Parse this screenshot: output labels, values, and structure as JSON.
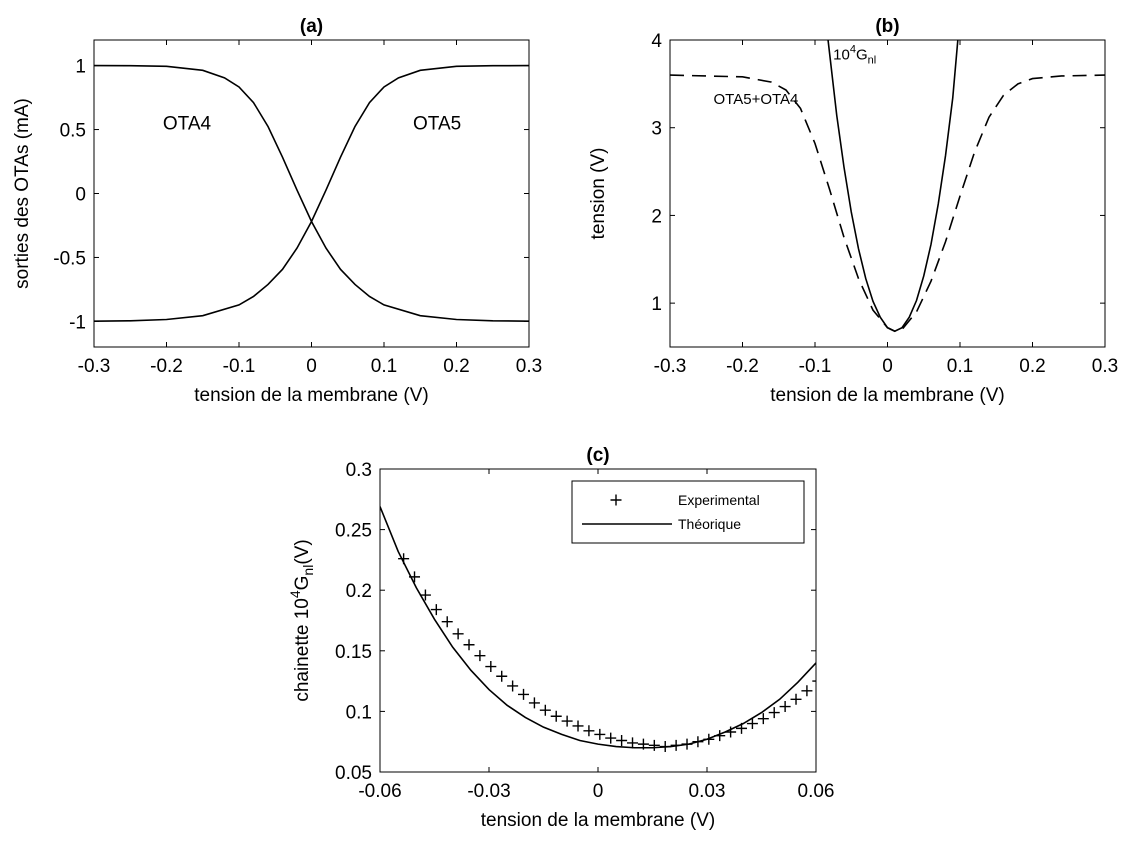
{
  "chart_data": [
    {
      "id": "a",
      "type": "line",
      "title": "(a)",
      "xlabel": "tension de la membrane (V)",
      "ylabel": "sorties des OTAs (mA)",
      "xlim": [
        -0.3,
        0.3
      ],
      "ylim": [
        -1.2,
        1.2
      ],
      "xticks": [
        -0.3,
        -0.2,
        -0.1,
        0,
        0.1,
        0.2,
        0.3
      ],
      "xtick_labels": [
        "-0.3",
        "-0.2",
        "-0.1",
        "0",
        "0.1",
        "0.2",
        "0.3"
      ],
      "yticks": [
        -1,
        -0.5,
        0,
        0.5,
        1
      ],
      "ytick_labels": [
        "-1",
        "-0.5",
        "0",
        "0.5",
        "1"
      ],
      "grid": false,
      "series": [
        {
          "name": "OTA4",
          "style": "solid",
          "x": [
            -0.3,
            -0.25,
            -0.2,
            -0.15,
            -0.12,
            -0.1,
            -0.08,
            -0.06,
            -0.04,
            -0.02,
            0,
            0.02,
            0.04,
            0.06,
            0.08,
            0.1,
            0.15,
            0.2,
            0.25,
            0.3
          ],
          "y": [
            1.0,
            0.999,
            0.994,
            0.963,
            0.904,
            0.833,
            0.711,
            0.524,
            0.284,
            0.027,
            -0.219,
            -0.427,
            -0.593,
            -0.711,
            -0.805,
            -0.871,
            -0.955,
            -0.985,
            -0.995,
            -0.998
          ]
        },
        {
          "name": "OTA5",
          "style": "solid",
          "x": [
            -0.3,
            -0.25,
            -0.2,
            -0.15,
            -0.1,
            -0.08,
            -0.06,
            -0.04,
            -0.02,
            0,
            0.02,
            0.04,
            0.06,
            0.08,
            0.1,
            0.12,
            0.15,
            0.2,
            0.25,
            0.3
          ],
          "y": [
            -0.998,
            -0.995,
            -0.985,
            -0.955,
            -0.871,
            -0.805,
            -0.711,
            -0.593,
            -0.427,
            -0.219,
            0.027,
            0.284,
            0.524,
            0.711,
            0.833,
            0.904,
            0.963,
            0.994,
            0.999,
            1.0
          ]
        }
      ],
      "annotations": [
        {
          "text": "OTA4",
          "x": -0.205,
          "y": 0.5
        },
        {
          "text": "OTA5",
          "x": 0.14,
          "y": 0.5
        }
      ]
    },
    {
      "id": "b",
      "type": "line",
      "title": "(b)",
      "xlabel": "tension de la membrane (V)",
      "ylabel": "tension (V)",
      "xlim": [
        -0.3,
        0.3
      ],
      "ylim": [
        0.5,
        4
      ],
      "xticks": [
        -0.3,
        -0.2,
        -0.1,
        0,
        0.1,
        0.2,
        0.3
      ],
      "xtick_labels": [
        "-0.3",
        "-0.2",
        "-0.1",
        "0",
        "0.1",
        "0.2",
        "0.3"
      ],
      "yticks": [
        1,
        2,
        3,
        4
      ],
      "ytick_labels": [
        "1",
        "2",
        "3",
        "4"
      ],
      "grid": false,
      "series": [
        {
          "name": "10^4G_nl",
          "style": "solid",
          "x": [
            -0.082,
            -0.07,
            -0.06,
            -0.05,
            -0.04,
            -0.03,
            -0.02,
            -0.01,
            0,
            0.01,
            0.02,
            0.03,
            0.04,
            0.05,
            0.06,
            0.07,
            0.08,
            0.09,
            0.097
          ],
          "y": [
            4.0,
            3.14,
            2.55,
            2.04,
            1.62,
            1.28,
            1.02,
            0.84,
            0.72,
            0.68,
            0.72,
            0.84,
            1.03,
            1.31,
            1.67,
            2.13,
            2.68,
            3.34,
            4.0
          ]
        },
        {
          "name": "OTA5+OTA4",
          "style": "dashed",
          "x": [
            -0.3,
            -0.2,
            -0.16,
            -0.14,
            -0.12,
            -0.1,
            -0.08,
            -0.06,
            -0.04,
            -0.02,
            0,
            0.01,
            0.02,
            0.04,
            0.06,
            0.08,
            0.1,
            0.12,
            0.14,
            0.16,
            0.18,
            0.2,
            0.24,
            0.3
          ],
          "y": [
            3.6,
            3.58,
            3.52,
            3.43,
            3.22,
            2.82,
            2.3,
            1.75,
            1.28,
            0.92,
            0.72,
            0.68,
            0.7,
            0.9,
            1.25,
            1.7,
            2.22,
            2.72,
            3.12,
            3.37,
            3.5,
            3.56,
            3.59,
            3.6
          ]
        }
      ],
      "annotations": [
        {
          "text": "10",
          "sup": "4",
          "text2": "G",
          "sub": "nl",
          "x": -0.075,
          "y": 3.78
        },
        {
          "text": "OTA5+OTA4",
          "x": -0.24,
          "y": 3.27
        }
      ]
    },
    {
      "id": "c",
      "type": "line",
      "title": "(c)",
      "xlabel": "tension de la membrane (V)",
      "ylabel": "chainette 10^4G_nl(V)",
      "ylabel_parts": {
        "pre": "chainette 10",
        "sup": "4",
        "mid": "G",
        "sub": "nl",
        "post": "(V)"
      },
      "xlim": [
        -0.06,
        0.06
      ],
      "ylim": [
        0.05,
        0.3
      ],
      "xticks": [
        -0.06,
        -0.03,
        0,
        0.03,
        0.06
      ],
      "xtick_labels": [
        "-0.06",
        "-0.03",
        "0",
        "0.03",
        "0.06"
      ],
      "yticks": [
        0.05,
        0.1,
        0.15,
        0.2,
        0.25,
        0.3
      ],
      "ytick_labels": [
        "0.05",
        "0.1",
        "0.15",
        "0.2",
        "0.25",
        "0.3"
      ],
      "grid": false,
      "legend": {
        "position": "top-right",
        "entries": [
          "Experimental",
          "Théorique"
        ]
      },
      "series": [
        {
          "name": "Experimental",
          "style": "marker-plus",
          "x": [
            -0.0535,
            -0.0505,
            -0.0475,
            -0.0445,
            -0.0415,
            -0.0385,
            -0.0355,
            -0.0325,
            -0.0295,
            -0.0265,
            -0.0235,
            -0.0205,
            -0.0175,
            -0.0145,
            -0.0115,
            -0.0085,
            -0.0055,
            -0.0025,
            0.0005,
            0.0035,
            0.0065,
            0.0095,
            0.0125,
            0.0155,
            0.0185,
            0.0215,
            0.0245,
            0.0275,
            0.0305,
            0.0335,
            0.0365,
            0.0395,
            0.0425,
            0.0455,
            0.0485,
            0.0515,
            0.0545,
            0.0575,
            0.0605
          ],
          "y": [
            0.226,
            0.211,
            0.196,
            0.184,
            0.174,
            0.164,
            0.155,
            0.146,
            0.137,
            0.129,
            0.121,
            0.114,
            0.107,
            0.101,
            0.096,
            0.092,
            0.088,
            0.084,
            0.081,
            0.078,
            0.076,
            0.074,
            0.073,
            0.072,
            0.071,
            0.072,
            0.073,
            0.075,
            0.077,
            0.08,
            0.083,
            0.086,
            0.09,
            0.094,
            0.099,
            0.104,
            0.11,
            0.117,
            0.125
          ]
        },
        {
          "name": "Théorique",
          "style": "solid",
          "x": [
            -0.06,
            -0.055,
            -0.05,
            -0.045,
            -0.04,
            -0.035,
            -0.03,
            -0.025,
            -0.02,
            -0.015,
            -0.01,
            -0.005,
            0,
            0.005,
            0.01,
            0.013,
            0.015,
            0.02,
            0.025,
            0.03,
            0.035,
            0.04,
            0.045,
            0.05,
            0.055,
            0.06
          ],
          "y": [
            0.269,
            0.232,
            0.202,
            0.176,
            0.153,
            0.134,
            0.118,
            0.105,
            0.095,
            0.087,
            0.081,
            0.076,
            0.073,
            0.071,
            0.07,
            0.07,
            0.07,
            0.071,
            0.073,
            0.077,
            0.083,
            0.09,
            0.099,
            0.11,
            0.124,
            0.14
          ]
        }
      ]
    }
  ]
}
